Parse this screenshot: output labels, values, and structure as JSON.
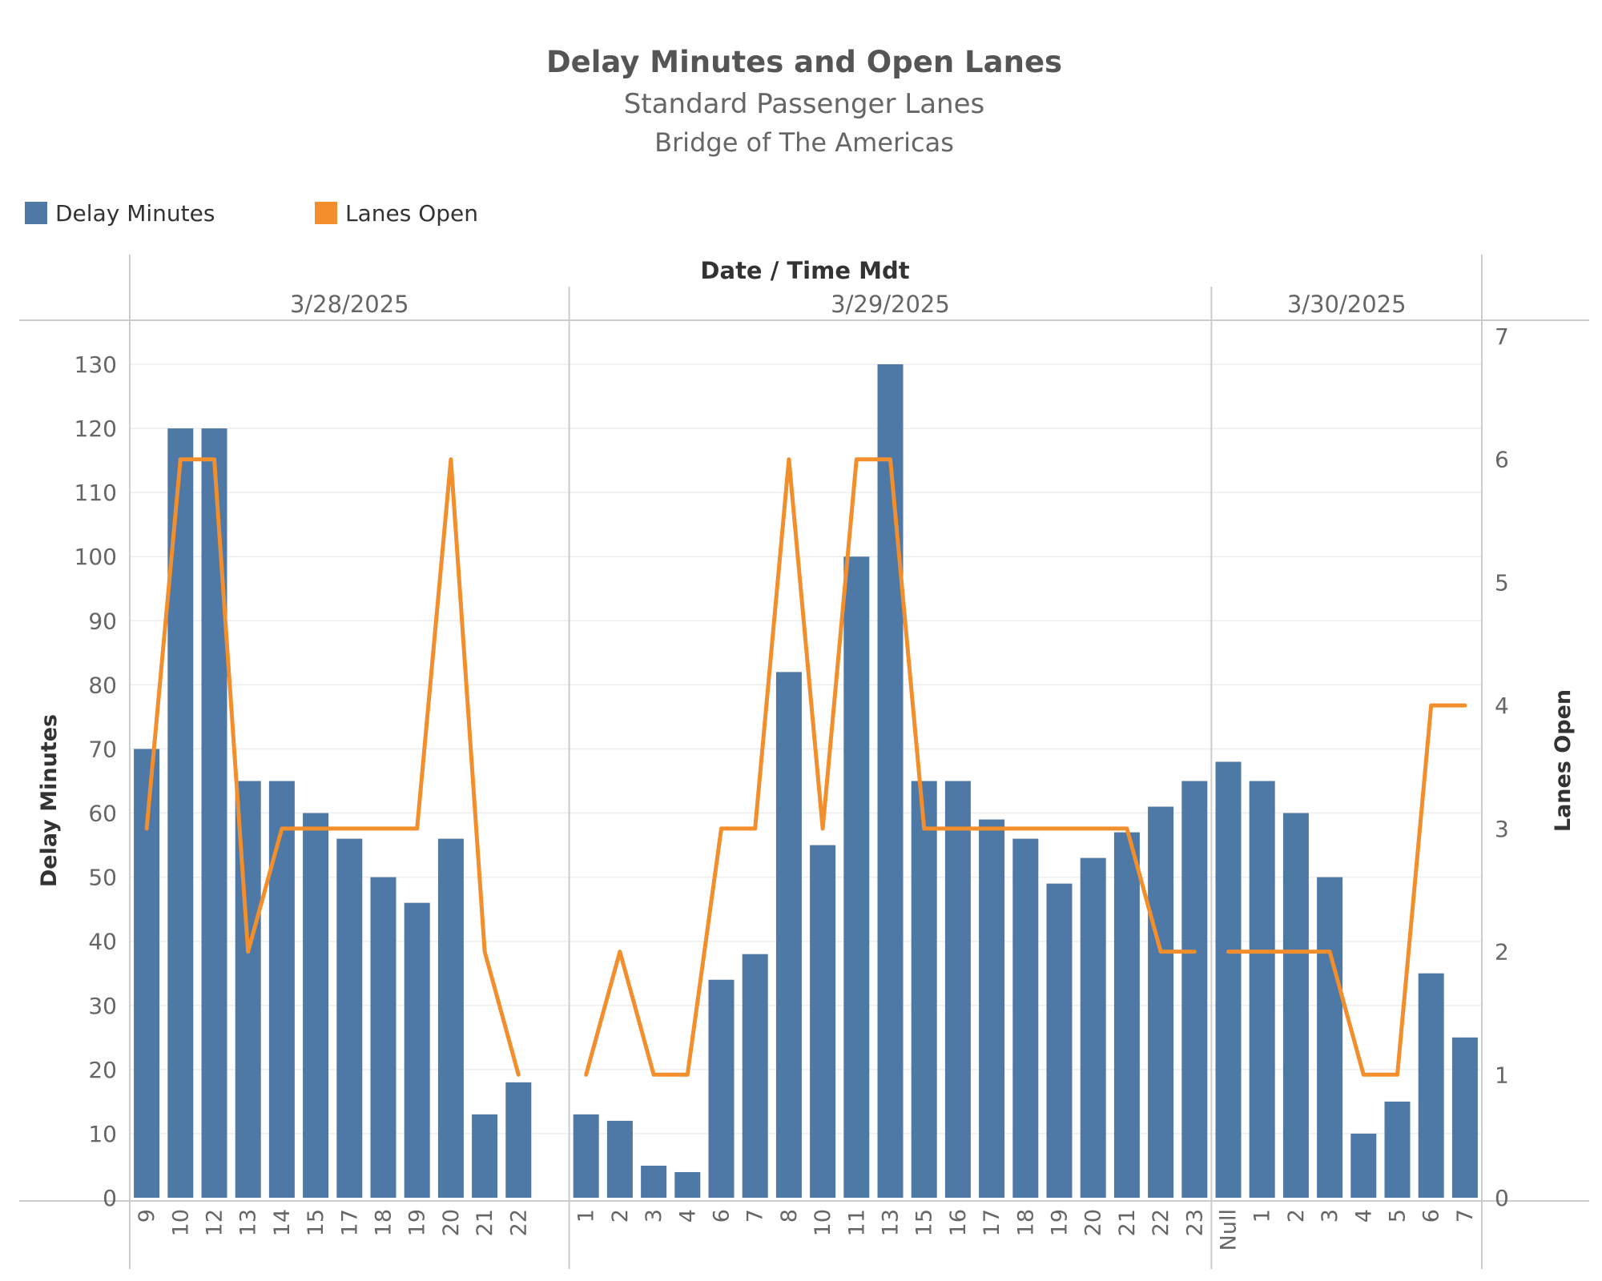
{
  "chart_data": {
    "type": "bar",
    "title": "Delay Minutes and Open Lanes",
    "subtitle": "Standard Passenger Lanes",
    "subtitle2": "Bridge of The Americas",
    "header_label": "Date  /  Time Mdt",
    "ylabel_left": "Delay Minutes",
    "ylabel_right": "Lanes Open",
    "ylim_left": [
      0,
      134
    ],
    "ylim_right": [
      0,
      7
    ],
    "yticks_left": [
      0,
      10,
      20,
      30,
      40,
      50,
      60,
      70,
      80,
      90,
      100,
      110,
      120,
      130
    ],
    "yticks_right": [
      0,
      1,
      2,
      3,
      4,
      5,
      6,
      7
    ],
    "grid": true,
    "legend_position": "top-left",
    "legend": [
      {
        "name": "Delay Minutes",
        "color": "#4e79a7",
        "kind": "bar"
      },
      {
        "name": "Lanes Open",
        "color": "#f28e2b",
        "kind": "line"
      }
    ],
    "panes": [
      {
        "date": "3/28/2025",
        "hours": [
          "9",
          "10",
          "12",
          "13",
          "14",
          "15",
          "17",
          "18",
          "19",
          "20",
          "21",
          "22"
        ],
        "delay_minutes": [
          70,
          120,
          120,
          65,
          65,
          60,
          56,
          50,
          46,
          56,
          13,
          18
        ],
        "lanes_open": [
          3,
          6,
          6,
          2,
          3,
          3,
          3,
          3,
          3,
          6,
          2,
          1
        ]
      },
      {
        "date": "3/29/2025",
        "hours": [
          "1",
          "2",
          "3",
          "4",
          "6",
          "7",
          "8",
          "10",
          "11",
          "13",
          "15",
          "16",
          "17",
          "18",
          "19",
          "20",
          "21",
          "22",
          "23"
        ],
        "delay_minutes": [
          13,
          12,
          5,
          4,
          34,
          38,
          82,
          55,
          100,
          130,
          65,
          65,
          59,
          56,
          49,
          53,
          57,
          61,
          65
        ],
        "lanes_open": [
          1,
          2,
          1,
          1,
          3,
          3,
          6,
          3,
          6,
          6,
          3,
          3,
          3,
          3,
          3,
          3,
          3,
          2,
          2
        ]
      },
      {
        "date": "3/30/2025",
        "hours": [
          "Null",
          "1",
          "2",
          "3",
          "4",
          "5",
          "6",
          "7"
        ],
        "delay_minutes": [
          68,
          65,
          60,
          50,
          10,
          15,
          35,
          25
        ],
        "lanes_open": [
          2,
          2,
          2,
          2,
          1,
          1,
          4,
          4
        ]
      }
    ],
    "series_colors": {
      "bar": "#4e79a7",
      "line": "#f28e2b"
    }
  }
}
